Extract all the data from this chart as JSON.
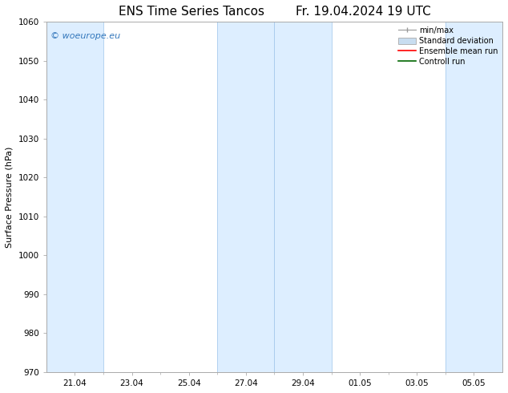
{
  "title_left": "ENS Time Series Tancos",
  "title_right": "Fr. 19.04.2024 19 UTC",
  "ylabel": "Surface Pressure (hPa)",
  "ylim": [
    970,
    1060
  ],
  "yticks": [
    970,
    980,
    990,
    1000,
    1010,
    1020,
    1030,
    1040,
    1050,
    1060
  ],
  "x_tick_labels": [
    "21.04",
    "23.04",
    "25.04",
    "27.04",
    "29.04",
    "01.05",
    "03.05",
    "05.05"
  ],
  "x_tick_positions": [
    1,
    3,
    5,
    7,
    9,
    11,
    13,
    15
  ],
  "xlim": [
    0,
    16
  ],
  "shaded_bands": [
    {
      "xmin": 0.0,
      "xmax": 2.0
    },
    {
      "xmin": 6.0,
      "xmax": 8.0
    },
    {
      "xmin": 8.0,
      "xmax": 10.0
    },
    {
      "xmin": 14.0,
      "xmax": 16.0
    }
  ],
  "band_color": "#ddeeff",
  "band_edge_color": "#aaccee",
  "watermark_text": "© woeurope.eu",
  "watermark_color": "#3377bb",
  "bg_color": "#ffffff",
  "spine_color": "#aaaaaa",
  "title_fontsize": 11,
  "ylabel_fontsize": 8,
  "tick_fontsize": 7.5,
  "watermark_fontsize": 8,
  "legend_fontsize": 7
}
